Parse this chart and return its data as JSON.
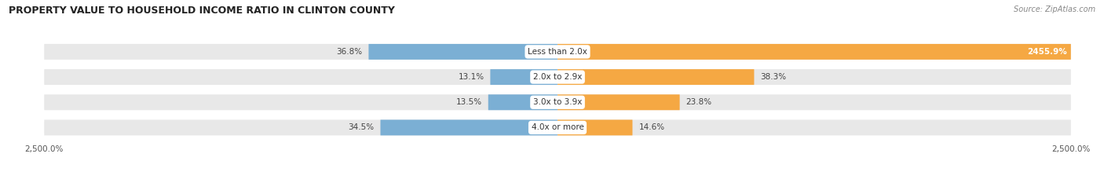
{
  "title": "PROPERTY VALUE TO HOUSEHOLD INCOME RATIO IN CLINTON COUNTY",
  "source": "Source: ZipAtlas.com",
  "categories": [
    "Less than 2.0x",
    "2.0x to 2.9x",
    "3.0x to 3.9x",
    "4.0x or more"
  ],
  "without_mortgage": [
    36.8,
    13.1,
    13.5,
    34.5
  ],
  "with_mortgage": [
    2455.9,
    38.3,
    23.8,
    14.6
  ],
  "axis_min": -2500.0,
  "axis_max": 2500.0,
  "color_without": "#7bafd4",
  "color_with": "#f5a843",
  "bg_bar": "#e8e8e8",
  "xlabel_left": "2,500.0%",
  "xlabel_right": "2,500.0%"
}
